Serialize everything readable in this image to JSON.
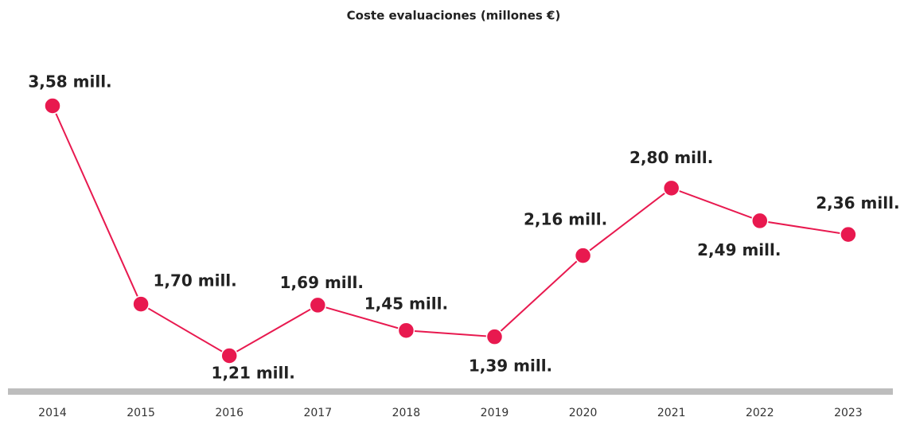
{
  "chart_data": {
    "type": "line",
    "title": "Coste evaluaciones (millones €)",
    "categories": [
      "2014",
      "2015",
      "2016",
      "2017",
      "2018",
      "2019",
      "2020",
      "2021",
      "2022",
      "2023"
    ],
    "series": [
      {
        "color": "#e8194f",
        "values": [
          3.58,
          1.7,
          1.21,
          1.69,
          1.45,
          1.39,
          2.16,
          2.8,
          2.49,
          2.36
        ],
        "value_labels": [
          "3,58 mill.",
          "1,70 mill.",
          "1,21 mill.",
          "1,69 mill.",
          "1,45 mill.",
          "1,39 mill.",
          "2,16 mill.",
          "2,80 mill.",
          "2,49 mill.",
          "2,36 mill."
        ]
      }
    ]
  }
}
